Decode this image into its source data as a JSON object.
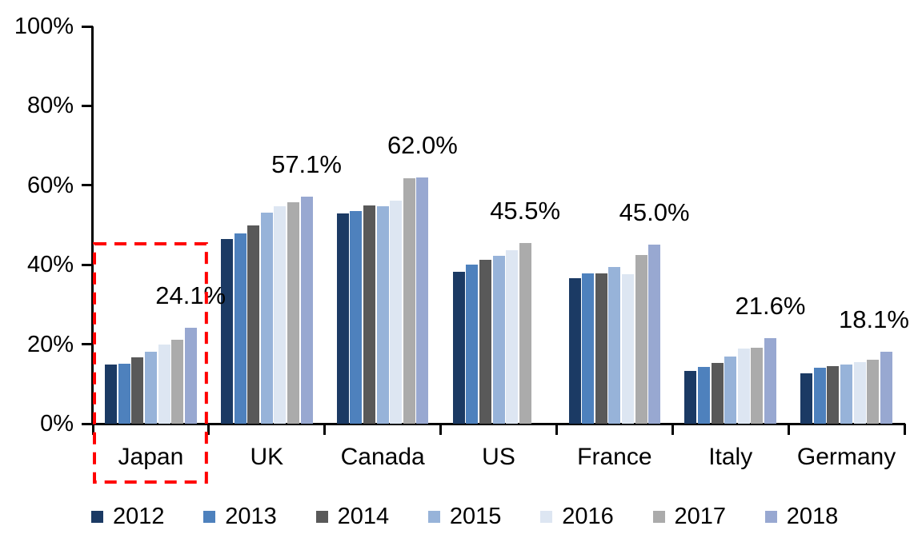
{
  "chart_data": {
    "type": "bar",
    "title": "",
    "categories": [
      "Japan",
      "UK",
      "Canada",
      "US",
      "France",
      "Italy",
      "Germany"
    ],
    "series": [
      {
        "name": "2012",
        "color": "#1B3A64",
        "values": [
          14.9,
          46.5,
          52.9,
          38.2,
          36.6,
          13.3,
          12.7
        ]
      },
      {
        "name": "2013",
        "color": "#4E81BD",
        "values": [
          15.0,
          47.8,
          53.5,
          40.0,
          37.8,
          14.2,
          14.1
        ]
      },
      {
        "name": "2014",
        "color": "#595959",
        "values": [
          16.7,
          49.8,
          54.9,
          41.2,
          37.8,
          15.3,
          14.5
        ]
      },
      {
        "name": "2015",
        "color": "#97B3D9",
        "values": [
          18.1,
          53.2,
          54.7,
          42.3,
          39.4,
          16.9,
          14.8
        ]
      },
      {
        "name": "2016",
        "color": "#DDE6F2",
        "values": [
          19.9,
          54.8,
          56.1,
          43.7,
          37.6,
          19.0,
          15.4
        ]
      },
      {
        "name": "2017",
        "color": "#ABABAB",
        "values": [
          21.1,
          55.8,
          61.8,
          45.5,
          42.4,
          19.2,
          16.0
        ]
      },
      {
        "name": "2018",
        "color": "#98A8D1",
        "values": [
          24.1,
          57.1,
          62.0,
          null,
          45.0,
          21.6,
          18.1
        ]
      }
    ],
    "data_labels": [
      "24.1%",
      "57.1%",
      "62.0%",
      "45.5%",
      "45.0%",
      "21.6%",
      "18.1%"
    ],
    "y_axis": {
      "ticks": [
        "0%",
        "20%",
        "40%",
        "60%",
        "80%",
        "100%"
      ],
      "min": 0,
      "max": 100,
      "tick_step": 20,
      "gridlines": false
    },
    "x_axis": {
      "labels": [
        "Japan",
        "UK",
        "Canada",
        "US",
        "France",
        "Italy",
        "Germany"
      ]
    },
    "legend": {
      "position": "bottom",
      "entries": [
        "2012",
        "2013",
        "2014",
        "2015",
        "2016",
        "2017",
        "2018"
      ]
    },
    "highlight": {
      "category": "Japan",
      "shape": "dashed-rectangle",
      "color": "#FF0000"
    },
    "axis_color": "#000000",
    "background_color": "#FFFFFF"
  }
}
